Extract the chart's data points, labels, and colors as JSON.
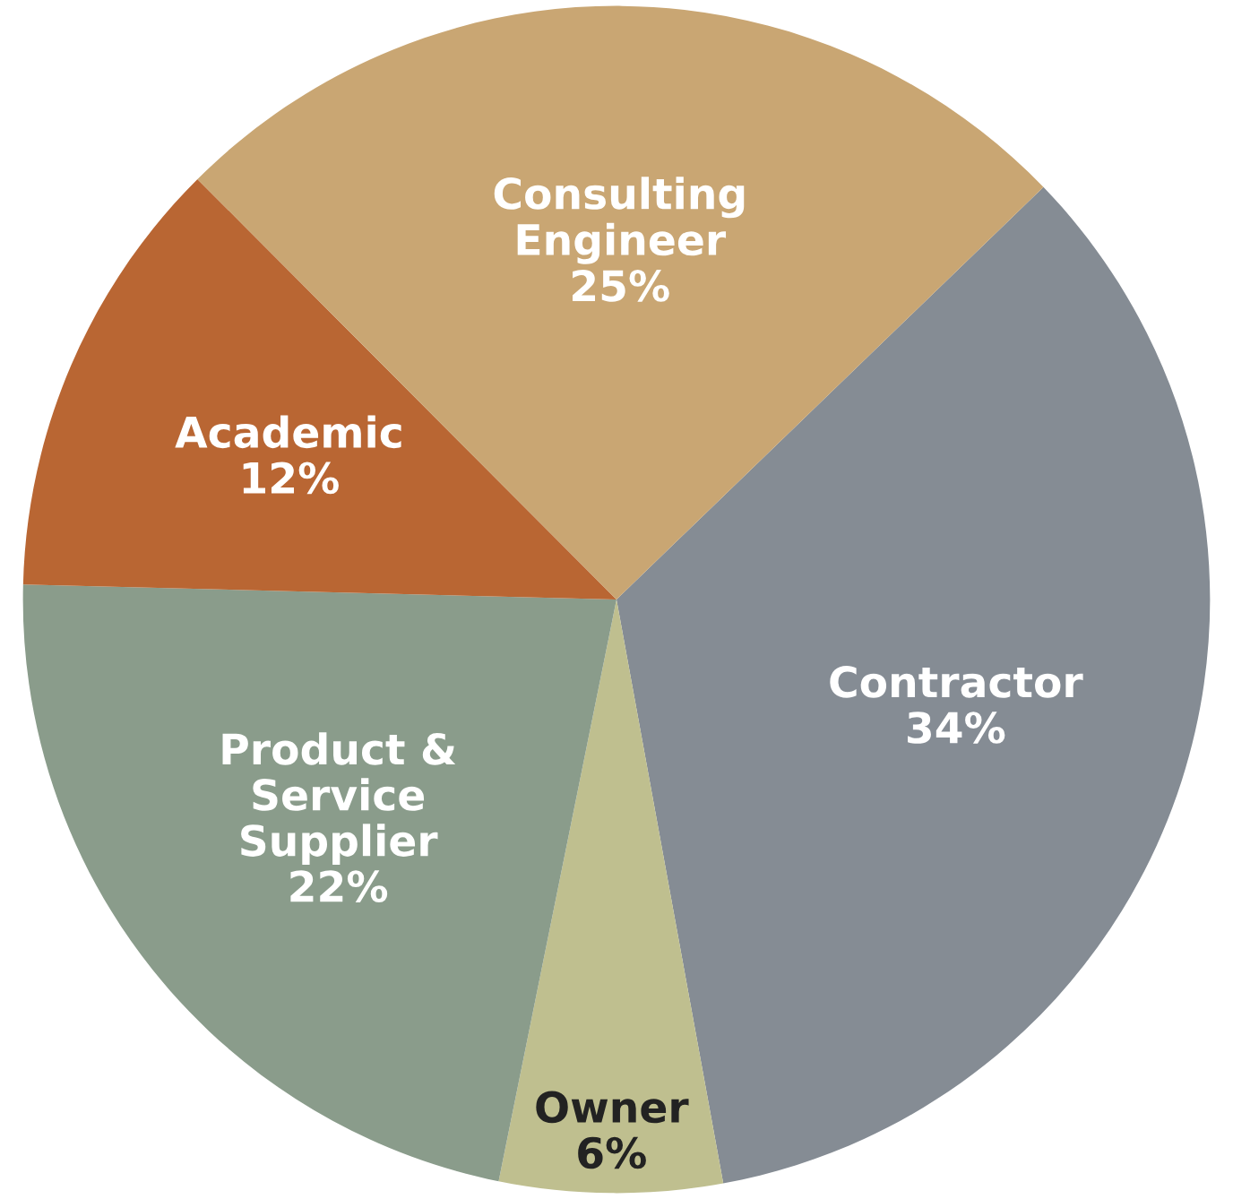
{
  "chart_data": {
    "type": "pie",
    "categories": [
      "Contractor",
      "Owner",
      "Product &\nService\nSupplier",
      "Academic",
      "Consulting\nEngineer"
    ],
    "values": [
      34,
      6,
      22,
      12,
      25
    ],
    "value_labels": [
      "34%",
      "6%",
      "22%",
      "12%",
      "25%"
    ],
    "colors": [
      "#858c94",
      "#bfbf8f",
      "#8a9c8b",
      "#b96633",
      "#c9a673"
    ],
    "legend": false
  }
}
